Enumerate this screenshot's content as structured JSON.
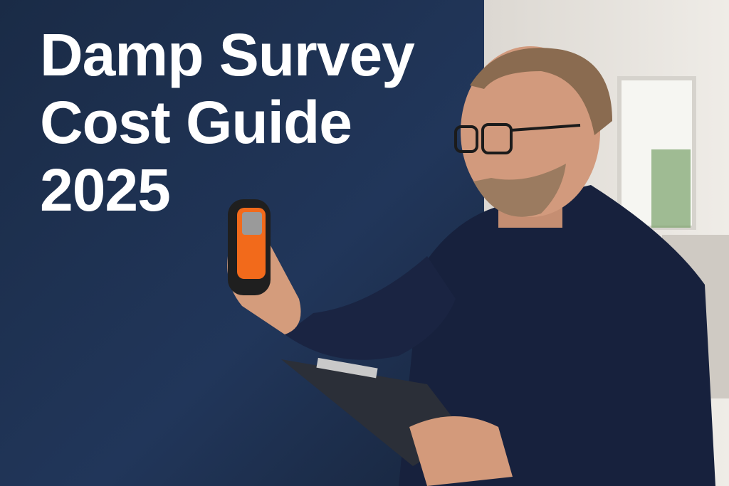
{
  "headline": {
    "line1": "Damp Survey",
    "line2": "Cost Guide",
    "line3": "2025"
  },
  "colors": {
    "wall": "#1d2f4b",
    "room": "#e9e6e1",
    "fleece": "#17213d",
    "meter_accent": "#f26a1b",
    "title_text": "#ffffff"
  }
}
